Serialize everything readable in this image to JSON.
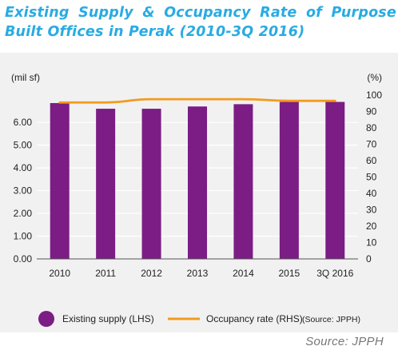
{
  "title": {
    "line1": "Existing Supply & Occupancy Rate of Purpose",
    "line2": "Built Offices in Perak (2010-3Q 2016)"
  },
  "colors": {
    "title": "#29abe2",
    "bar": "#7b1d84",
    "line": "#f39a1e",
    "panel": "#f1f1f1",
    "grid": "#ffffff"
  },
  "chart_data": {
    "type": "bar",
    "categories": [
      "2010",
      "2011",
      "2012",
      "2013",
      "2014",
      "2015",
      "3Q 2016"
    ],
    "series": [
      {
        "name": "Existing supply (LHS)",
        "type": "bar",
        "axis": "left",
        "values": [
          6.85,
          6.6,
          6.6,
          6.7,
          6.8,
          6.9,
          6.9
        ]
      },
      {
        "name": "Occupancy rate (RHS)",
        "type": "line",
        "axis": "right",
        "values": [
          95.5,
          95.5,
          97.5,
          97.5,
          97.5,
          96.5,
          96.5
        ]
      }
    ],
    "ylabel": "(mil sf)",
    "y2label": "(%)",
    "ylim": [
      0,
      7.2
    ],
    "y2lim": [
      0,
      100
    ],
    "yticks": [
      "0.00",
      "1.00",
      "2.00",
      "3.00",
      "4.00",
      "5.00",
      "6.00"
    ],
    "y2ticks": [
      "0",
      "10",
      "20",
      "30",
      "40",
      "50",
      "60",
      "70",
      "80",
      "90",
      "100"
    ],
    "grid": true,
    "legend": {
      "position": "bottom",
      "items": [
        "Existing supply (LHS)",
        "Occupancy rate (RHS)"
      ],
      "note": "(Source: JPPH)"
    }
  },
  "source": "Source: JPPH"
}
